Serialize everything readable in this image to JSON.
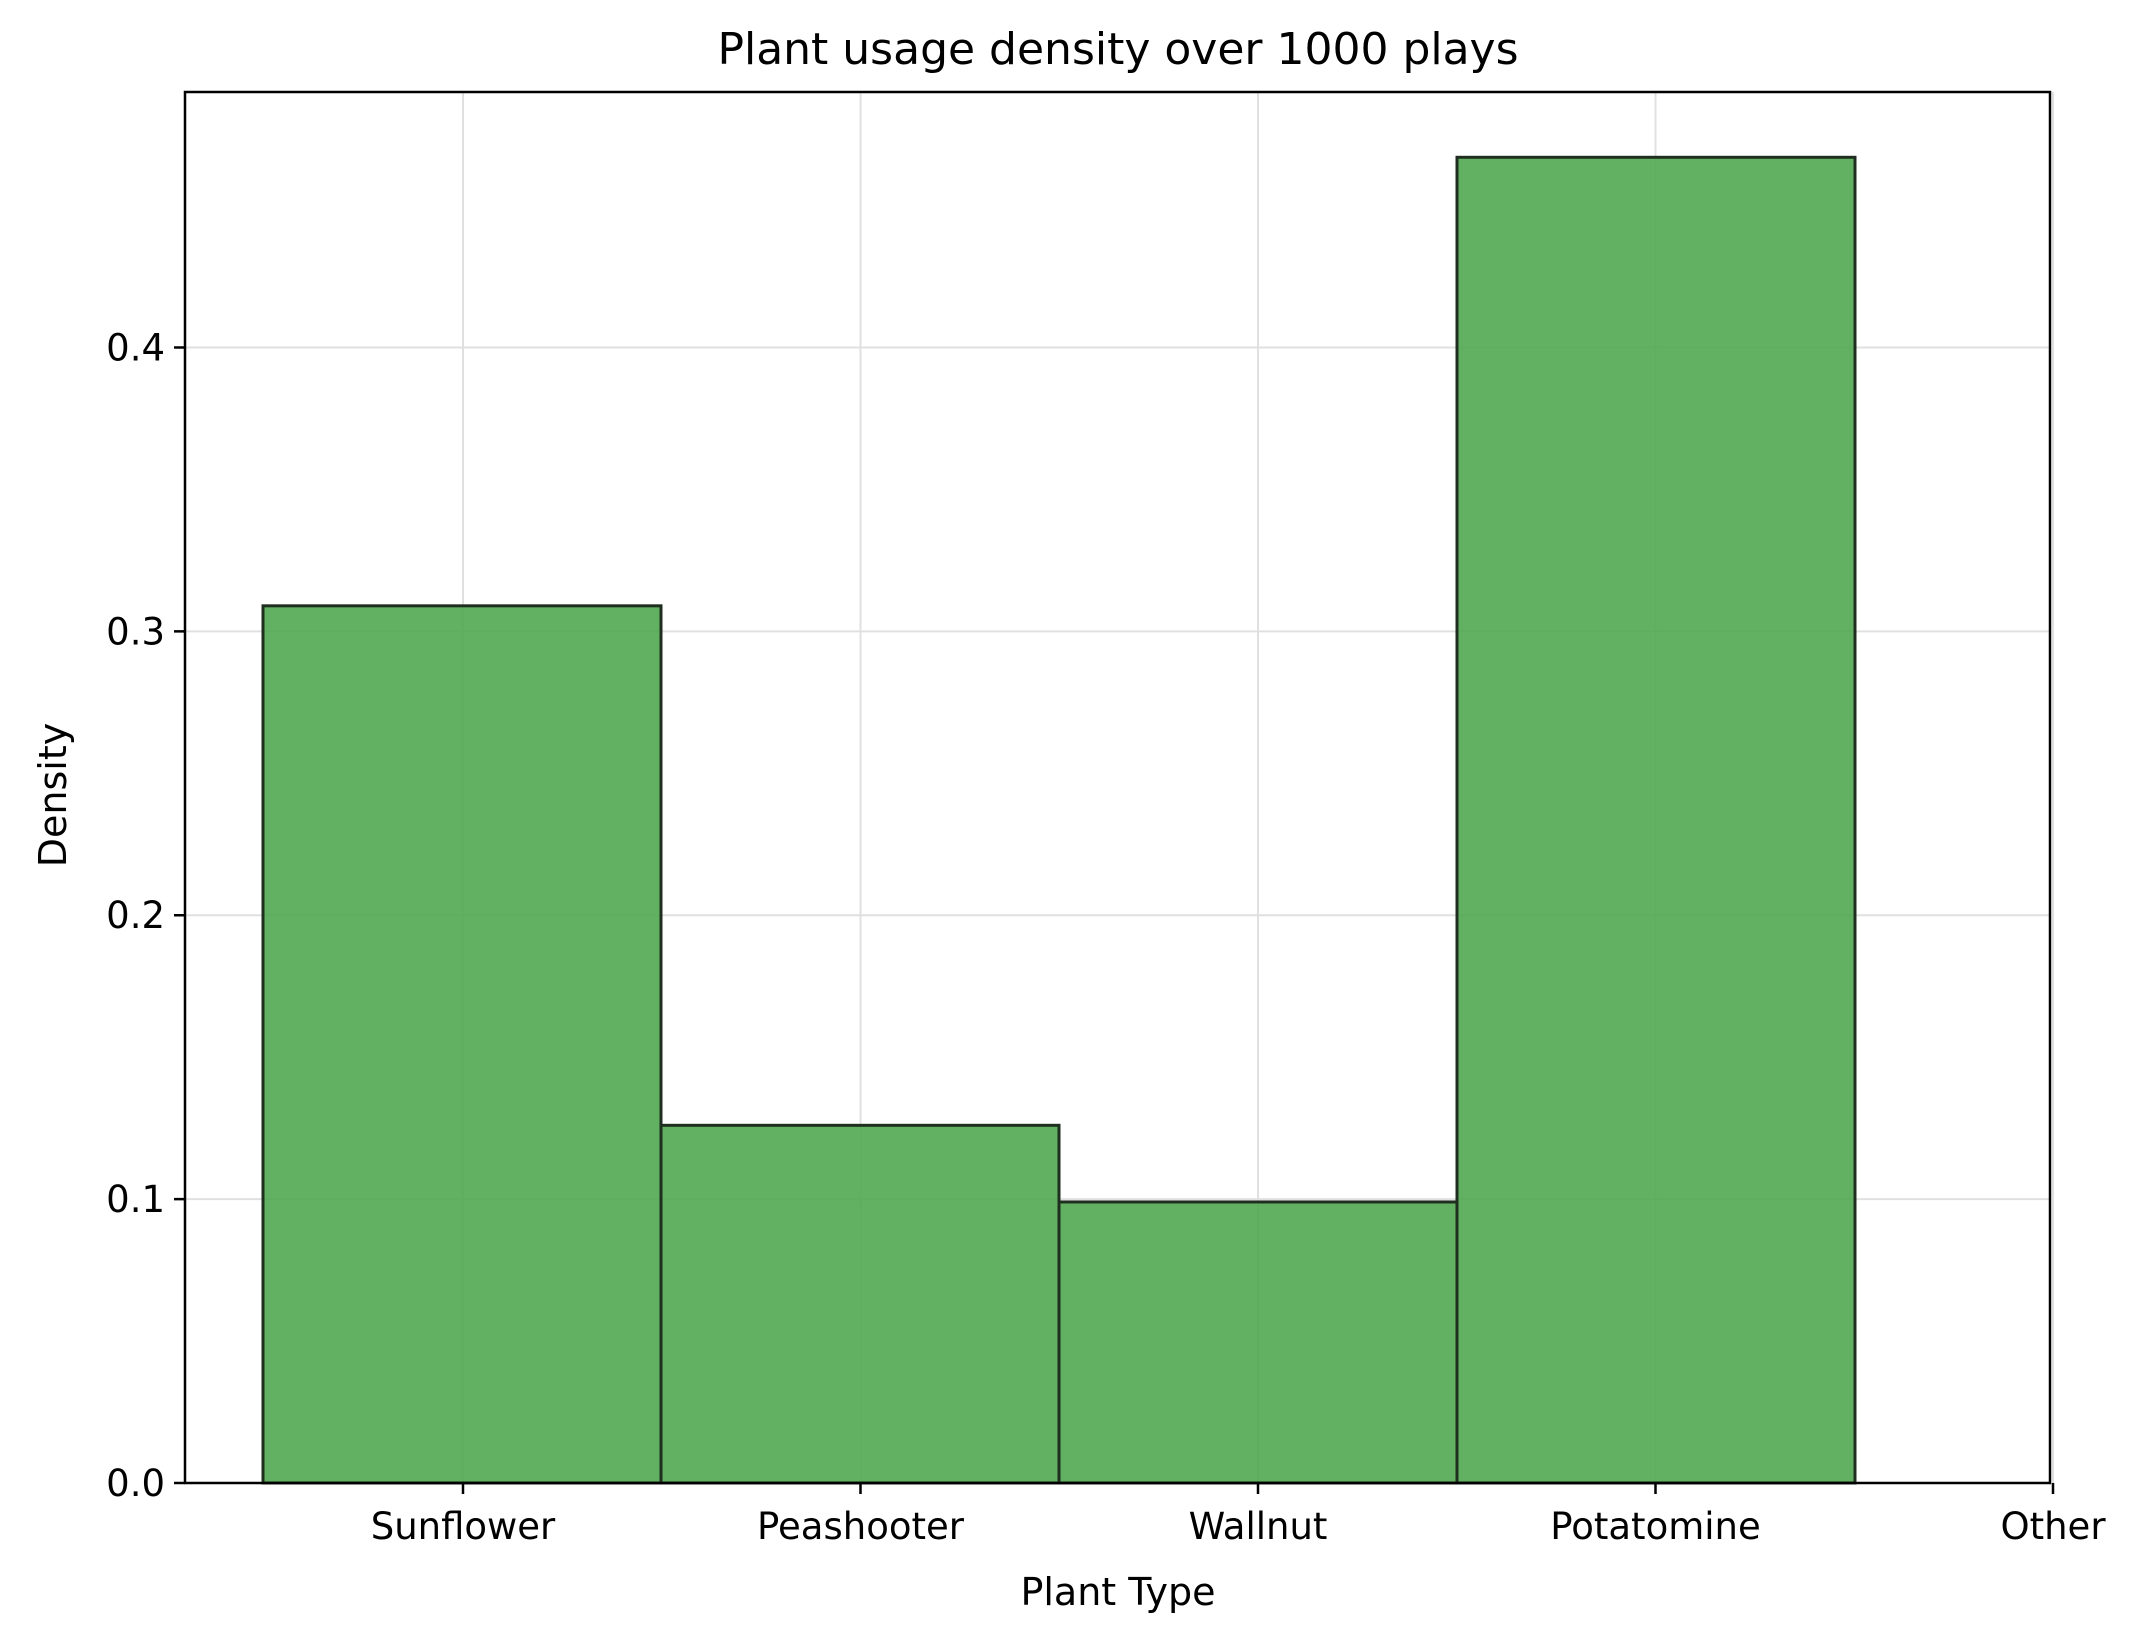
{
  "chart_data": {
    "type": "bar",
    "title": "Plant usage density over 1000 plays",
    "xlabel": "Plant Type",
    "ylabel": "Density",
    "categories": [
      "Sunflower",
      "Peashooter",
      "Wallnut",
      "Potatomine"
    ],
    "x_tick_labels": [
      "Sunflower",
      "Peashooter",
      "Wallnut",
      "Potatomine",
      "Other"
    ],
    "values": [
      0.309,
      0.126,
      0.099,
      0.467
    ],
    "y_ticks": [
      "0.0",
      "0.1",
      "0.2",
      "0.3",
      "0.4"
    ],
    "y_tick_values": [
      0.0,
      0.1,
      0.2,
      0.3,
      0.4
    ],
    "ylim": [
      0,
      0.49
    ],
    "grid": true,
    "colors": {
      "bar_fill": "#4ca64c",
      "bar_edge": "#1f2f1f",
      "grid": "#e0e0e0",
      "axes": "#000000"
    }
  }
}
